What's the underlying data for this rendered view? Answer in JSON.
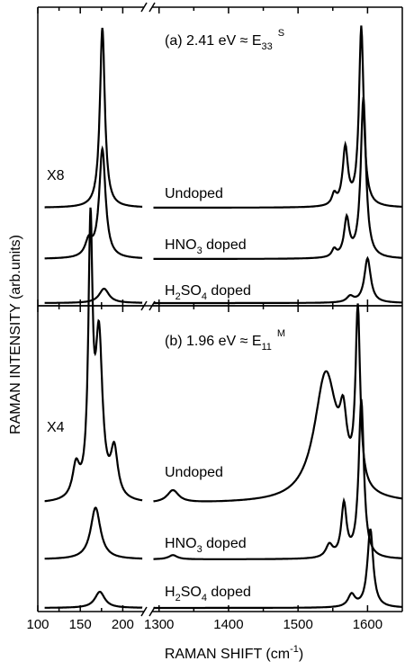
{
  "chart_data": {
    "type": "line",
    "xlabel": "RAMAN SHIFT (cm",
    "xlabel_sup": "-1",
    "xlabel_end": ")",
    "ylabel": "RAMAN INTENSITY (arb.units)",
    "x_axis": {
      "break": true,
      "low_segment": {
        "range": [
          100,
          225
        ],
        "ticks": [
          "100",
          "150",
          "200"
        ]
      },
      "high_segment": {
        "range": [
          1290,
          1650
        ],
        "ticks": [
          "1300",
          "1400",
          "1500",
          "1600"
        ]
      }
    },
    "panels": [
      {
        "id": "a",
        "title": "(a)  2.41 eV ≈ E",
        "title_sub": "33",
        "title_sup": "S",
        "scale_label": "X8",
        "series": [
          {
            "name": "Undoped",
            "low_peaks": [
              {
                "x": 176,
                "h": 1.0,
                "w": 7
              }
            ],
            "high_peaks": [
              {
                "x": 1591,
                "h": 1.0,
                "w": 8
              },
              {
                "x": 1568,
                "h": 0.32,
                "w": 9
              },
              {
                "x": 1552,
                "h": 0.06,
                "w": 8
              }
            ]
          },
          {
            "name": "HNO",
            "name_sub": "3",
            "name_end": " doped",
            "low_peaks": [
              {
                "x": 176,
                "h": 0.55,
                "w": 9
              },
              {
                "x": 160,
                "h": 0.08,
                "w": 10
              }
            ],
            "high_peaks": [
              {
                "x": 1594,
                "h": 0.85,
                "w": 9
              },
              {
                "x": 1570,
                "h": 0.2,
                "w": 9
              },
              {
                "x": 1552,
                "h": 0.04,
                "w": 8
              }
            ]
          },
          {
            "name": "H",
            "name_sub": "2",
            "name_mid": "SO",
            "name_sub2": "4",
            "name_end": " doped",
            "low_peaks": [
              {
                "x": 178,
                "h": 0.1,
                "w": 14
              }
            ],
            "high_peaks": [
              {
                "x": 1600,
                "h": 0.45,
                "w": 11
              },
              {
                "x": 1575,
                "h": 0.06,
                "w": 12
              }
            ]
          }
        ]
      },
      {
        "id": "b",
        "title": "(b)  1.96 eV ≈ E",
        "title_sub": "11",
        "title_sup": "M",
        "scale_label": "X4",
        "series": [
          {
            "name": "Undoped",
            "low_peaks": [
              {
                "x": 162,
                "h": 1.0,
                "w": 6
              },
              {
                "x": 172,
                "h": 0.6,
                "w": 10
              },
              {
                "x": 145,
                "h": 0.12,
                "w": 10
              },
              {
                "x": 190,
                "h": 0.18,
                "w": 10
              }
            ],
            "high_peaks": [
              {
                "x": 1586,
                "h": 0.85,
                "w": 8
              },
              {
                "x": 1540,
                "h": 0.62,
                "w": 40
              },
              {
                "x": 1565,
                "h": 0.25,
                "w": 12
              },
              {
                "x": 1320,
                "h": 0.06,
                "w": 20
              }
            ]
          },
          {
            "name": "HNO",
            "name_sub": "3",
            "name_end": " doped",
            "low_peaks": [
              {
                "x": 168,
                "h": 0.25,
                "w": 14
              }
            ],
            "high_peaks": [
              {
                "x": 1591,
                "h": 0.75,
                "w": 9
              },
              {
                "x": 1566,
                "h": 0.25,
                "w": 9
              },
              {
                "x": 1545,
                "h": 0.06,
                "w": 12
              },
              {
                "x": 1320,
                "h": 0.02,
                "w": 15
              }
            ]
          },
          {
            "name": "H",
            "name_sub": "2",
            "name_mid": "SO",
            "name_sub2": "4",
            "name_end": " doped",
            "low_peaks": [
              {
                "x": 173,
                "h": 0.06,
                "w": 14
              }
            ],
            "high_peaks": [
              {
                "x": 1604,
                "h": 0.38,
                "w": 10
              },
              {
                "x": 1577,
                "h": 0.06,
                "w": 12
              }
            ]
          }
        ]
      }
    ]
  }
}
